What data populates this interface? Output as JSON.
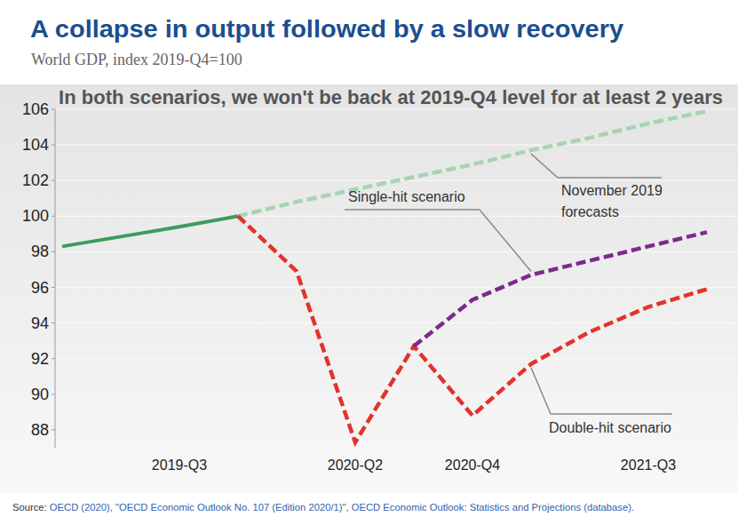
{
  "chart_data": {
    "type": "line",
    "title": "A collapse in output followed by a slow recovery",
    "subtitle": "World GDP, index 2019-Q4=100",
    "annotation": "In both scenarios, we won't be back at 2019-Q4 level for at least 2 years",
    "source": "Source: OECD (2020), \"OECD Economic Outlook No. 107 (Edition 2020/1)\", OECD Economic Outlook: Statistics and Projections (database).",
    "categories": [
      null,
      null,
      "2019-Q3",
      null,
      null,
      "2020-Q2",
      null,
      "2020-Q4",
      null,
      null,
      "2021-Q3",
      null
    ],
    "ylim": [
      87,
      106
    ],
    "yticks": [
      88,
      90,
      92,
      94,
      96,
      98,
      100,
      102,
      104,
      106
    ],
    "grid": true,
    "series": [
      {
        "color": "#3d9b5f",
        "line_style": "solid",
        "values": [
          98.3,
          98.85,
          99.4,
          100,
          null,
          null,
          null,
          null,
          null,
          null,
          null,
          null
        ]
      },
      {
        "name": "November 2019 forecasts",
        "color": "#a6d4b3",
        "line_style": "dashed",
        "values": [
          null,
          null,
          null,
          100,
          100.8,
          101.5,
          102.2,
          102.9,
          103.7,
          104.4,
          105.2,
          105.9
        ]
      },
      {
        "name": "Double-hit scenario",
        "color": "#e2332d",
        "line_style": "dashed",
        "values": [
          null,
          null,
          null,
          100,
          96.9,
          87.3,
          92.7,
          88.8,
          91.7,
          93.5,
          94.9,
          95.9
        ]
      },
      {
        "name": "Single-hit scenario",
        "color": "#7d2a8c",
        "line_style": "dashed",
        "values": [
          null,
          null,
          null,
          null,
          null,
          null,
          92.7,
          95.3,
          96.7,
          97.5,
          98.3,
          99.1
        ]
      }
    ]
  }
}
